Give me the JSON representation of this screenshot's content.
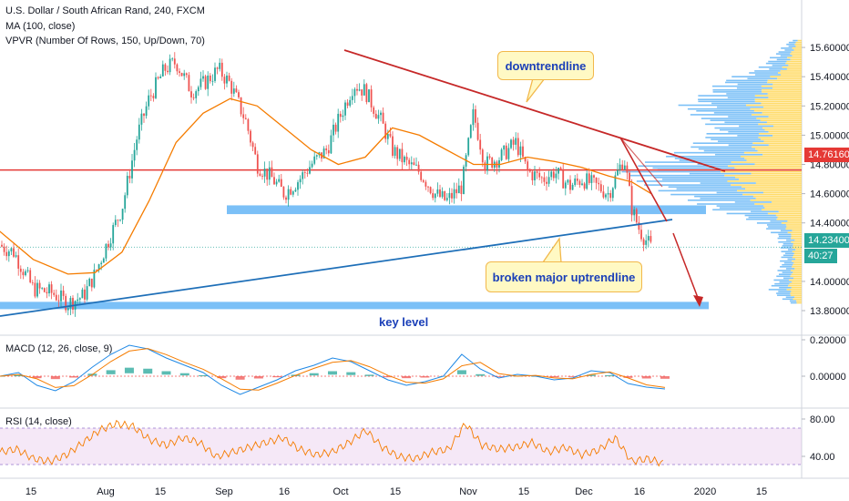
{
  "legend": {
    "title": "U.S. Dollar / South African Rand, 240, FXCM",
    "ma": "MA (100, close)",
    "vpvr": "VPVR (Number Of Rows, 150, Up/Down, 70)",
    "macd": "MACD (12, 26, close, 9)",
    "rsi": "RSI (14, close)"
  },
  "annotations": {
    "downtrend": "downtrendline",
    "uptrend": "broken major uptrendline",
    "key_level": "key level"
  },
  "price_tags": {
    "resistance": "14.76160",
    "last": "14.23400",
    "countdown": "40:27"
  },
  "colors": {
    "up": "#26a69a",
    "down": "#ef5350",
    "ma": "#f57c00",
    "resistance_line": "#e53935",
    "downtrend_line": "#c62828",
    "uptrend_line": "#1e6fb8",
    "zone": "#64b5f6",
    "vpvr_up": "#64b5f6",
    "vpvr_down": "#ffd54f",
    "rsi_band": "#e1bee7",
    "macd_line": "#1e88e5",
    "signal_line": "#f57c00"
  },
  "chart_data": {
    "type": "candlestick",
    "price_axis": {
      "ticks": [
        "15.60000",
        "15.40000",
        "15.20000",
        "15.00000",
        "14.80000",
        "14.60000",
        "14.40000",
        "14.00000",
        "13.80000"
      ],
      "ylim": [
        13.75,
        15.7
      ]
    },
    "macd_axis": {
      "ticks": [
        "0.20000",
        "0.00000"
      ]
    },
    "rsi_axis": {
      "ticks": [
        "80.00",
        "40.00"
      ]
    },
    "x_ticks": [
      "15",
      "Aug",
      "15",
      "Sep",
      "16",
      "Oct",
      "15",
      "Nov",
      "15",
      "Dec",
      "16",
      "2020",
      "15"
    ],
    "close_path": [
      {
        "x": "Jul 01",
        "y": 14.25
      },
      {
        "x": "Jul 05",
        "y": 14.2
      },
      {
        "x": "Jul 10",
        "y": 13.95
      },
      {
        "x": "Jul 15",
        "y": 13.92
      },
      {
        "x": "Jul 19",
        "y": 13.85
      },
      {
        "x": "Jul 23",
        "y": 13.9
      },
      {
        "x": "Jul 26",
        "y": 14.05
      },
      {
        "x": "Jul 29",
        "y": 14.25
      },
      {
        "x": "Aug 02",
        "y": 14.5
      },
      {
        "x": "Aug 06",
        "y": 15.0
      },
      {
        "x": "Aug 09",
        "y": 15.25
      },
      {
        "x": "Aug 13",
        "y": 15.45
      },
      {
        "x": "Aug 16",
        "y": 15.5
      },
      {
        "x": "Aug 20",
        "y": 15.3
      },
      {
        "x": "Aug 23",
        "y": 15.35
      },
      {
        "x": "Aug 27",
        "y": 15.45
      },
      {
        "x": "Aug 30",
        "y": 15.35
      },
      {
        "x": "Sep 03",
        "y": 15.1
      },
      {
        "x": "Sep 06",
        "y": 14.8
      },
      {
        "x": "Sep 10",
        "y": 14.7
      },
      {
        "x": "Sep 13",
        "y": 14.6
      },
      {
        "x": "Sep 17",
        "y": 14.7
      },
      {
        "x": "Sep 20",
        "y": 14.8
      },
      {
        "x": "Sep 24",
        "y": 14.9
      },
      {
        "x": "Sep 27",
        "y": 15.1
      },
      {
        "x": "Oct 01",
        "y": 15.35
      },
      {
        "x": "Oct 04",
        "y": 15.3
      },
      {
        "x": "Oct 08",
        "y": 15.1
      },
      {
        "x": "Oct 11",
        "y": 14.9
      },
      {
        "x": "Oct 15",
        "y": 14.8
      },
      {
        "x": "Oct 18",
        "y": 14.75
      },
      {
        "x": "Oct 22",
        "y": 14.6
      },
      {
        "x": "Oct 25",
        "y": 14.55
      },
      {
        "x": "Oct 29",
        "y": 14.65
      },
      {
        "x": "Nov 01",
        "y": 15.15
      },
      {
        "x": "Nov 04",
        "y": 14.8
      },
      {
        "x": "Nov 08",
        "y": 14.85
      },
      {
        "x": "Nov 12",
        "y": 14.95
      },
      {
        "x": "Nov 15",
        "y": 14.75
      },
      {
        "x": "Nov 19",
        "y": 14.7
      },
      {
        "x": "Nov 22",
        "y": 14.75
      },
      {
        "x": "Nov 26",
        "y": 14.65
      },
      {
        "x": "Nov 29",
        "y": 14.7
      },
      {
        "x": "Dec 03",
        "y": 14.65
      },
      {
        "x": "Dec 06",
        "y": 14.6
      },
      {
        "x": "Dec 10",
        "y": 14.85
      },
      {
        "x": "Dec 12",
        "y": 14.5
      },
      {
        "x": "Dec 14",
        "y": 14.35
      },
      {
        "x": "Dec 17",
        "y": 14.23
      }
    ],
    "ma100": [
      {
        "x": "Jul 01",
        "y": 14.35
      },
      {
        "x": "Jul 10",
        "y": 14.15
      },
      {
        "x": "Jul 19",
        "y": 14.05
      },
      {
        "x": "Jul 26",
        "y": 14.06
      },
      {
        "x": "Aug 02",
        "y": 14.2
      },
      {
        "x": "Aug 09",
        "y": 14.55
      },
      {
        "x": "Aug 16",
        "y": 14.95
      },
      {
        "x": "Aug 23",
        "y": 15.15
      },
      {
        "x": "Aug 30",
        "y": 15.25
      },
      {
        "x": "Sep 06",
        "y": 15.2
      },
      {
        "x": "Sep 13",
        "y": 15.05
      },
      {
        "x": "Sep 20",
        "y": 14.9
      },
      {
        "x": "Sep 27",
        "y": 14.8
      },
      {
        "x": "Oct 04",
        "y": 14.85
      },
      {
        "x": "Oct 11",
        "y": 15.05
      },
      {
        "x": "Oct 18",
        "y": 15.0
      },
      {
        "x": "Oct 25",
        "y": 14.9
      },
      {
        "x": "Nov 01",
        "y": 14.8
      },
      {
        "x": "Nov 08",
        "y": 14.8
      },
      {
        "x": "Nov 15",
        "y": 14.85
      },
      {
        "x": "Nov 22",
        "y": 14.82
      },
      {
        "x": "Nov 29",
        "y": 14.78
      },
      {
        "x": "Dec 06",
        "y": 14.72
      },
      {
        "x": "Dec 12",
        "y": 14.68
      },
      {
        "x": "Dec 17",
        "y": 14.6
      }
    ],
    "levels": {
      "resistance": 14.7616,
      "last_price": 14.234,
      "support_zone": [
        14.46,
        14.52
      ],
      "key_level_zone": [
        13.81,
        13.86
      ]
    },
    "macd_osc": [
      0,
      0.02,
      -0.05,
      -0.08,
      -0.03,
      0.05,
      0.12,
      0.17,
      0.15,
      0.1,
      0.06,
      0.02,
      -0.05,
      -0.1,
      -0.06,
      -0.02,
      0.03,
      0.06,
      0.1,
      0.08,
      0.03,
      -0.02,
      -0.05,
      -0.03,
      0.0,
      0.12,
      0.04,
      -0.01,
      0.01,
      0.0,
      -0.02,
      -0.01,
      0.03,
      0.02,
      -0.04,
      -0.06,
      -0.07
    ],
    "rsi_values": [
      45,
      48,
      38,
      35,
      42,
      55,
      68,
      75,
      72,
      58,
      52,
      60,
      55,
      40,
      45,
      50,
      55,
      60,
      48,
      42,
      45,
      55,
      68,
      50,
      40,
      38,
      45,
      48,
      75,
      52,
      48,
      50,
      55,
      45,
      50,
      42,
      47,
      60,
      35,
      38,
      32
    ]
  }
}
